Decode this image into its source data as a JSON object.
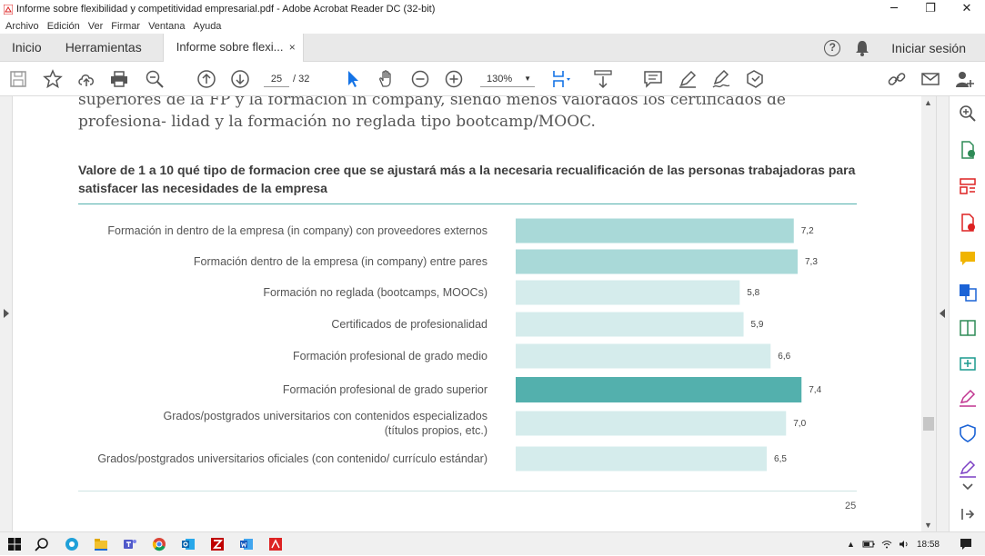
{
  "window": {
    "title": "Informe sobre flexibilidad y competitividad empresarial.pdf - Adobe Acrobat Reader DC (32-bit)",
    "minimize": "─",
    "maximize": "❐",
    "close": "✕"
  },
  "menu": [
    "Archivo",
    "Edición",
    "Ver",
    "Firmar",
    "Ventana",
    "Ayuda"
  ],
  "tabs": {
    "home": "Inicio",
    "tools": "Herramientas",
    "document": "Informe sobre flexi...",
    "close": "×",
    "help": "?",
    "login": "Iniciar sesión"
  },
  "toolbar": {
    "page_current": "25",
    "page_total": "/ 32",
    "zoom": "130%"
  },
  "document": {
    "body_text": "superiores de la FP y la formación in company, siendo menos valorados los certificados de profesiona- lidad y la formación no reglada tipo bootcamp/MOOC.",
    "page_number": "25"
  },
  "chart_data": {
    "type": "bar",
    "orientation": "horizontal",
    "title": "Valore de 1 a 10 qué tipo de formacion cree que se ajustará más a la necesaria recualificación de las personas trabajadoras para satisfacer las necesidades de la empresa",
    "categories": [
      [
        "Formación in dentro de la empresa (in company) con proveedores externos"
      ],
      [
        "Formación dentro de la empresa (in company) entre pares"
      ],
      [
        "Formación no reglada (bootcamps, MOOCs)"
      ],
      [
        "Certificados de profesionalidad"
      ],
      [
        "Formación profesional de grado medio"
      ],
      [
        "Formación profesional de grado superior"
      ],
      [
        "Grados/postgrados universitarios con contenidos especializados",
        "(títulos propios, etc.)"
      ],
      [
        "Grados/postgrados universitarios oficiales (con contenido/ currículo estándar)"
      ]
    ],
    "values": [
      7.2,
      7.3,
      5.8,
      5.9,
      6.6,
      7.4,
      7.0,
      6.5
    ],
    "value_labels": [
      "7,2",
      "7,3",
      "5,8",
      "5,9",
      "6,6",
      "7,4",
      "7,0",
      "6,5"
    ],
    "bar_colors": [
      "#a9d9d8",
      "#a9d9d8",
      "#d5ecec",
      "#d5ecec",
      "#d5ecec",
      "#53b0ad",
      "#d5ecec",
      "#d5ecec"
    ],
    "xlim": [
      0,
      10
    ]
  },
  "taskbar": {
    "clock": "18:58"
  }
}
